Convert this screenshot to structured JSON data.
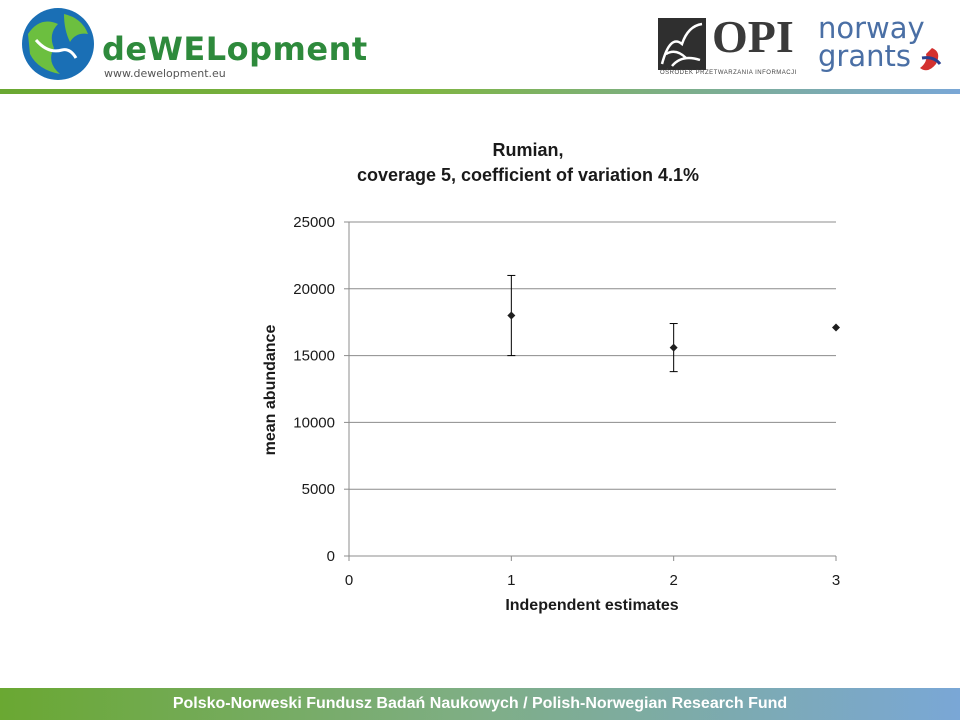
{
  "header": {
    "brand_name": "deWELopment",
    "brand_url": "www.dewelopment.eu",
    "opi_text": "OPI",
    "opi_subtitle": "OŚRODEK PRZETWARZANIA INFORMACJI",
    "norway_line1": "norway",
    "norway_line2": "grants",
    "colors": {
      "brand_green": "#2e8a3c",
      "brand_blue": "#1a6fb5",
      "norway_blue": "#4a6fa5",
      "norway_red": "#d3312f"
    }
  },
  "footer": {
    "text": "Polsko-Norweski Fundusz Badań Naukowych / Polish-Norwegian Research Fund"
  },
  "chart_data": {
    "type": "scatter",
    "title_line1": "Rumian,",
    "title_line2": "coverage 5, coefficient of variation 4.1%",
    "xlabel": "Independent estimates",
    "ylabel": "mean abundance",
    "xlim": [
      0,
      3
    ],
    "ylim": [
      0,
      25000
    ],
    "x_ticks": [
      "0",
      "1",
      "2",
      "3"
    ],
    "y_ticks": [
      "0",
      "5000",
      "10000",
      "15000",
      "20000",
      "25000"
    ],
    "grid": true,
    "legend": "none",
    "points": [
      {
        "x": 1,
        "y": 18000,
        "err_low": 15000,
        "err_high": 21000
      },
      {
        "x": 2,
        "y": 15600,
        "err_low": 13800,
        "err_high": 17400
      },
      {
        "x": 3,
        "y": 17100,
        "err_low": null,
        "err_high": null
      }
    ]
  }
}
